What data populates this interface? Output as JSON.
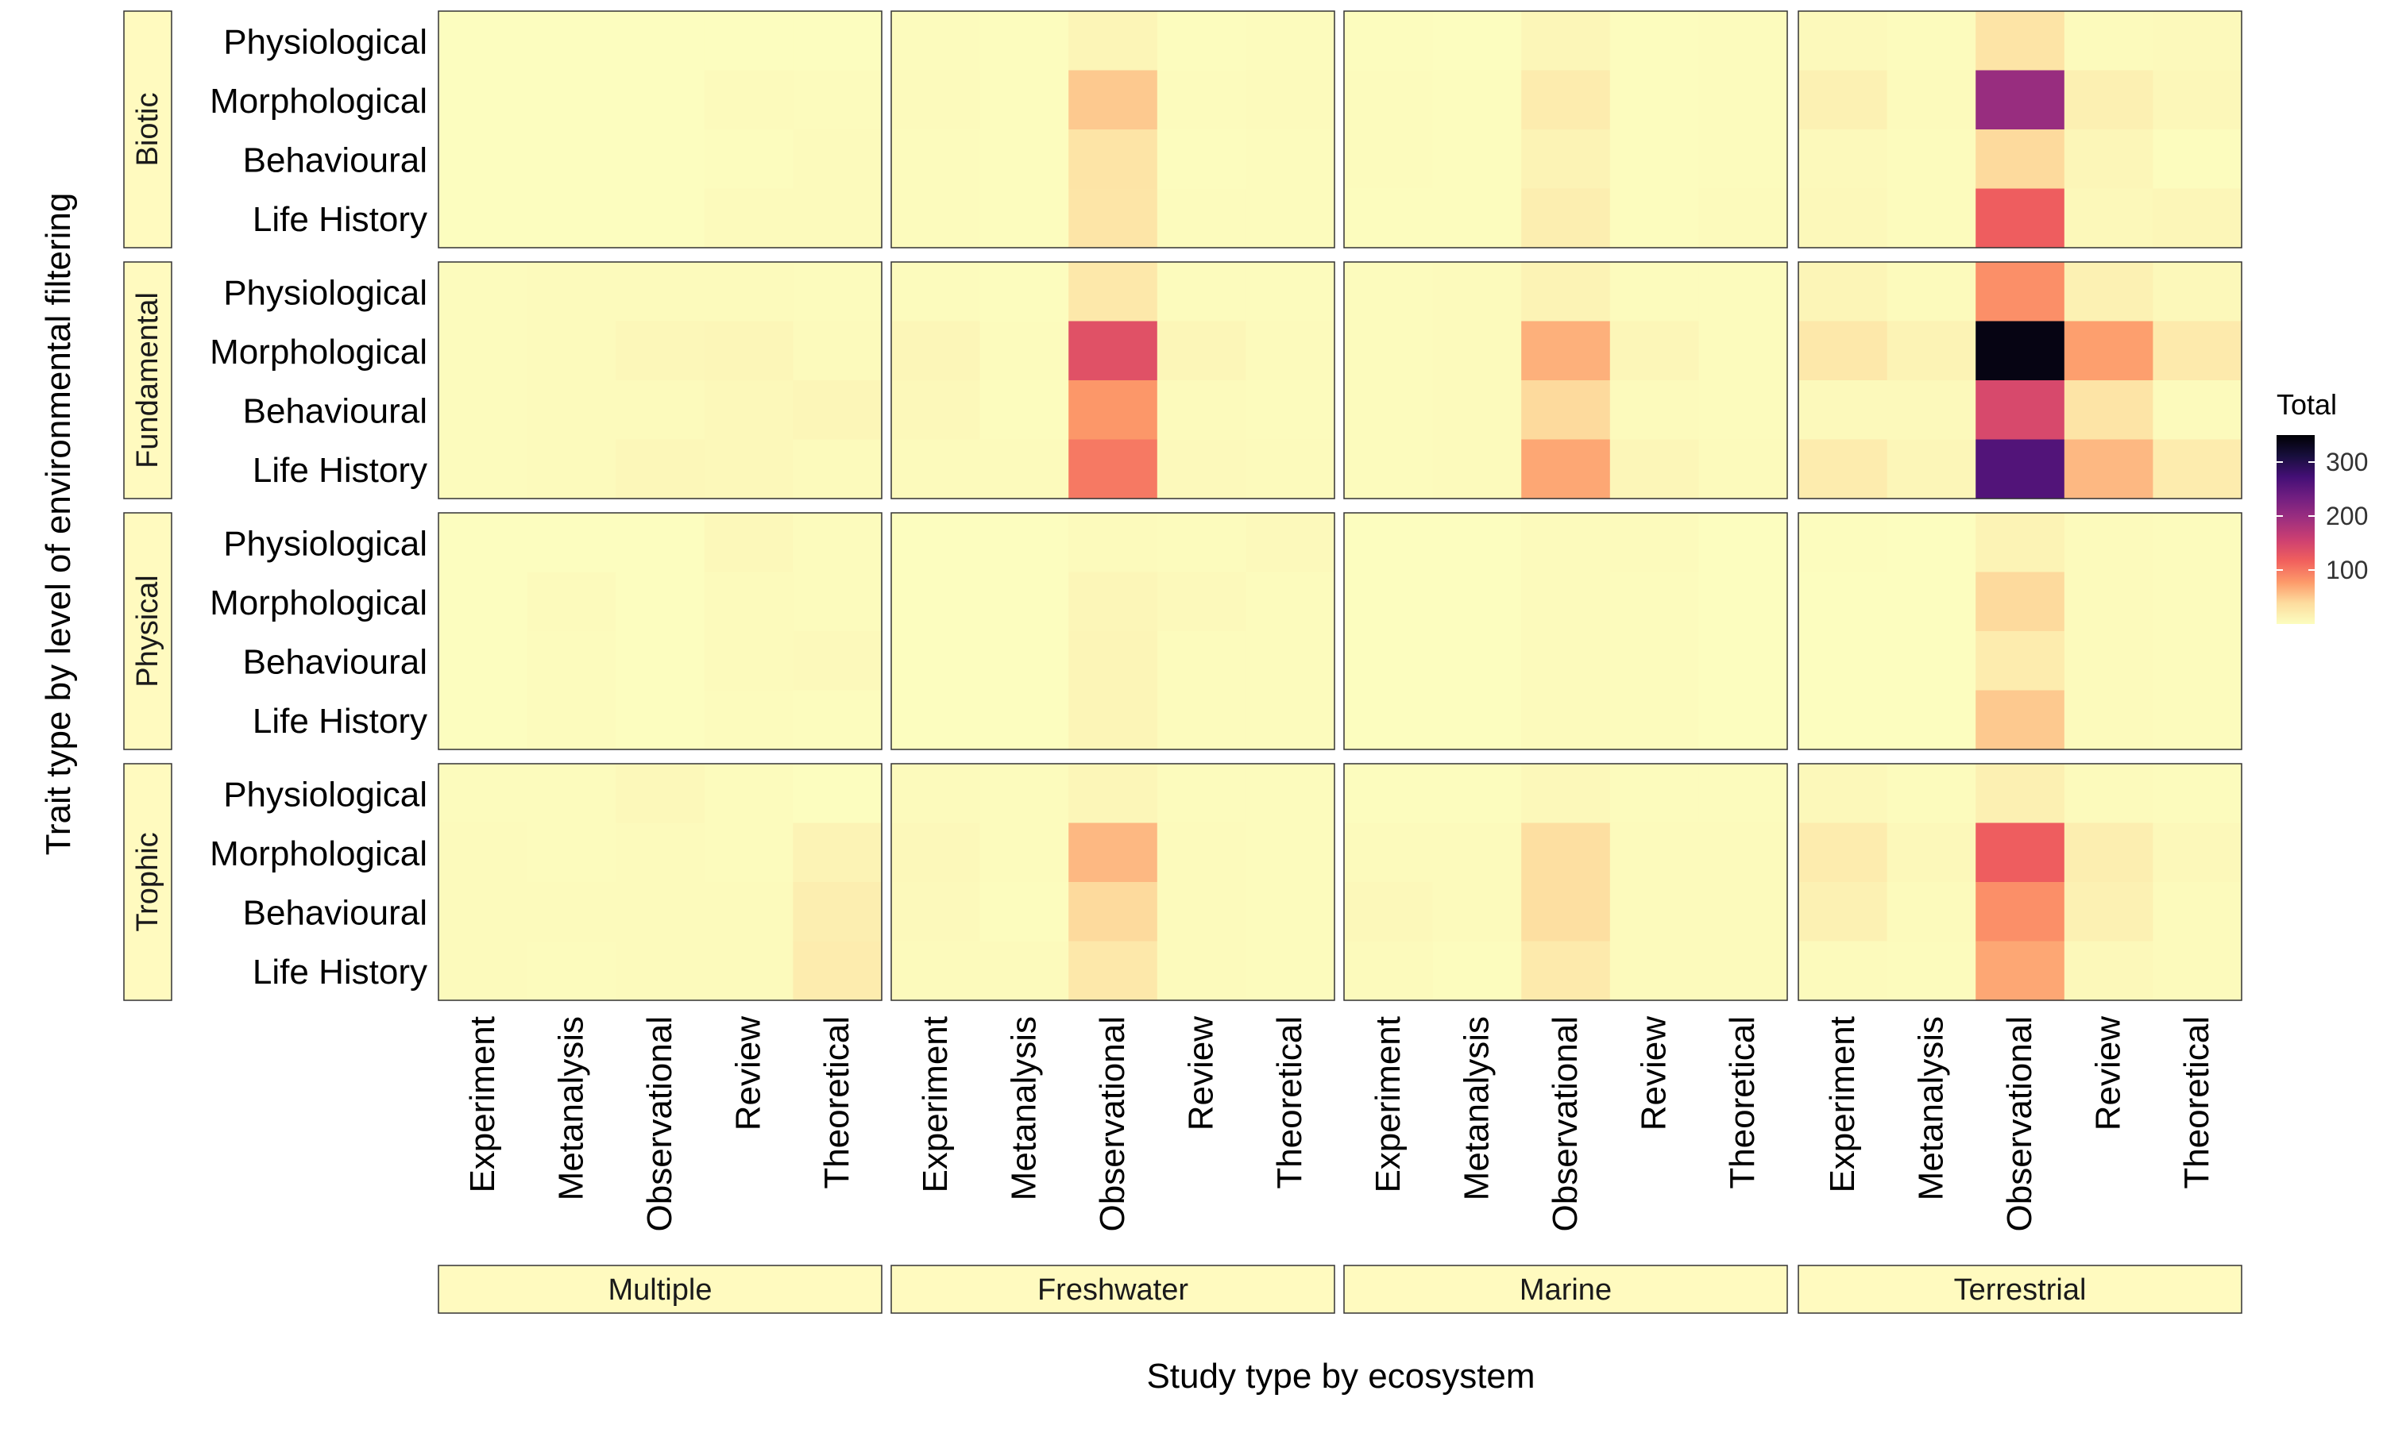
{
  "chart_data": {
    "type": "heatmap",
    "title": "",
    "xlabel": "Study type by ecosystem",
    "ylabel": "Trait type by level of environmental filtering",
    "ecosystems": [
      "Multiple",
      "Freshwater",
      "Marine",
      "Terrestrial"
    ],
    "study_types": [
      "Experiment",
      "Metanalysis",
      "Observational",
      "Review",
      "Theoretical"
    ],
    "filter_levels": [
      "Biotic",
      "Fundamental",
      "Physical",
      "Trophic"
    ],
    "trait_types": [
      "Physiological",
      "Morphological",
      "Behavioural",
      "Life History"
    ],
    "legend": {
      "title": "Total",
      "ticks": [
        100,
        200,
        300
      ],
      "range": [
        0,
        350
      ],
      "placement": "right",
      "colors": [
        "#fcfdbf",
        "#fddc9e",
        "#fd9a6a",
        "#f1605d",
        "#cd4071",
        "#9e2f7f",
        "#721f81",
        "#440f76",
        "#180f3d",
        "#000004"
      ]
    },
    "values": {
      "Biotic": {
        "Physiological": {
          "Multiple": [
            0,
            0,
            0,
            0,
            0
          ],
          "Freshwater": [
            2,
            1,
            10,
            1,
            2
          ],
          "Marine": [
            1,
            0,
            8,
            1,
            2
          ],
          "Terrestrial": [
            5,
            2,
            30,
            4,
            5
          ]
        },
        "Morphological": {
          "Multiple": [
            0,
            0,
            0,
            3,
            2
          ],
          "Freshwater": [
            3,
            1,
            50,
            2,
            3
          ],
          "Marine": [
            2,
            1,
            20,
            1,
            2
          ],
          "Terrestrial": [
            14,
            4,
            200,
            15,
            7
          ]
        },
        "Behavioural": {
          "Multiple": [
            0,
            0,
            0,
            1,
            4
          ],
          "Freshwater": [
            2,
            1,
            30,
            1,
            2
          ],
          "Marine": [
            2,
            1,
            12,
            1,
            2
          ],
          "Terrestrial": [
            5,
            2,
            40,
            8,
            1
          ]
        },
        "Life History": {
          "Multiple": [
            0,
            0,
            0,
            3,
            4
          ],
          "Freshwater": [
            2,
            1,
            28,
            2,
            2
          ],
          "Marine": [
            1,
            1,
            18,
            1,
            4
          ],
          "Terrestrial": [
            6,
            2,
            120,
            6,
            8
          ]
        }
      },
      "Fundamental": {
        "Physiological": {
          "Multiple": [
            2,
            4,
            3,
            3,
            2
          ],
          "Freshwater": [
            2,
            1,
            25,
            2,
            2
          ],
          "Marine": [
            2,
            4,
            12,
            2,
            2
          ],
          "Terrestrial": [
            10,
            4,
            85,
            14,
            6
          ]
        },
        "Morphological": {
          "Multiple": [
            2,
            4,
            7,
            8,
            4
          ],
          "Freshwater": [
            8,
            2,
            135,
            8,
            4
          ],
          "Marine": [
            2,
            3,
            65,
            8,
            2
          ],
          "Terrestrial": [
            25,
            12,
            340,
            75,
            22
          ]
        },
        "Behavioural": {
          "Multiple": [
            2,
            4,
            4,
            6,
            8
          ],
          "Freshwater": [
            6,
            1,
            80,
            4,
            2
          ],
          "Marine": [
            2,
            3,
            40,
            4,
            2
          ],
          "Terrestrial": [
            5,
            5,
            145,
            30,
            4
          ]
        },
        "Life History": {
          "Multiple": [
            2,
            3,
            7,
            6,
            4
          ],
          "Freshwater": [
            3,
            3,
            100,
            5,
            4
          ],
          "Marine": [
            2,
            4,
            70,
            8,
            4
          ],
          "Terrestrial": [
            20,
            8,
            260,
            60,
            20
          ]
        }
      },
      "Physical": {
        "Physiological": {
          "Multiple": [
            0,
            0,
            0,
            6,
            2
          ],
          "Freshwater": [
            0,
            0,
            4,
            2,
            5
          ],
          "Marine": [
            0,
            0,
            4,
            3,
            0
          ],
          "Terrestrial": [
            1,
            0,
            12,
            4,
            2
          ]
        },
        "Morphological": {
          "Multiple": [
            0,
            3,
            0,
            3,
            2
          ],
          "Freshwater": [
            0,
            0,
            8,
            5,
            2
          ],
          "Marine": [
            0,
            0,
            4,
            2,
            0
          ],
          "Terrestrial": [
            0,
            0,
            40,
            4,
            2
          ]
        },
        "Behavioural": {
          "Multiple": [
            0,
            2,
            0,
            4,
            5
          ],
          "Freshwater": [
            0,
            0,
            9,
            2,
            2
          ],
          "Marine": [
            0,
            0,
            4,
            2,
            0
          ],
          "Terrestrial": [
            0,
            0,
            20,
            3,
            2
          ]
        },
        "Life History": {
          "Multiple": [
            0,
            2,
            0,
            2,
            1
          ],
          "Freshwater": [
            0,
            0,
            10,
            2,
            2
          ],
          "Marine": [
            0,
            0,
            4,
            2,
            0
          ],
          "Terrestrial": [
            0,
            0,
            50,
            3,
            2
          ]
        }
      },
      "Trophic": {
        "Physiological": {
          "Multiple": [
            2,
            2,
            6,
            2,
            0
          ],
          "Freshwater": [
            3,
            2,
            8,
            2,
            2
          ],
          "Marine": [
            1,
            1,
            6,
            2,
            2
          ],
          "Terrestrial": [
            6,
            2,
            15,
            3,
            2
          ]
        },
        "Morphological": {
          "Multiple": [
            3,
            2,
            4,
            2,
            12
          ],
          "Freshwater": [
            6,
            2,
            60,
            3,
            2
          ],
          "Marine": [
            4,
            3,
            35,
            4,
            4
          ],
          "Terrestrial": [
            20,
            6,
            120,
            18,
            6
          ]
        },
        "Behavioural": {
          "Multiple": [
            3,
            3,
            4,
            3,
            18
          ],
          "Freshwater": [
            5,
            1,
            40,
            3,
            2
          ],
          "Marine": [
            6,
            4,
            35,
            3,
            3
          ],
          "Terrestrial": [
            14,
            4,
            85,
            14,
            4
          ]
        },
        "Life History": {
          "Multiple": [
            3,
            2,
            4,
            3,
            20
          ],
          "Freshwater": [
            3,
            3,
            25,
            3,
            2
          ],
          "Marine": [
            3,
            1,
            22,
            3,
            3
          ],
          "Terrestrial": [
            4,
            2,
            70,
            6,
            4
          ]
        }
      }
    }
  }
}
